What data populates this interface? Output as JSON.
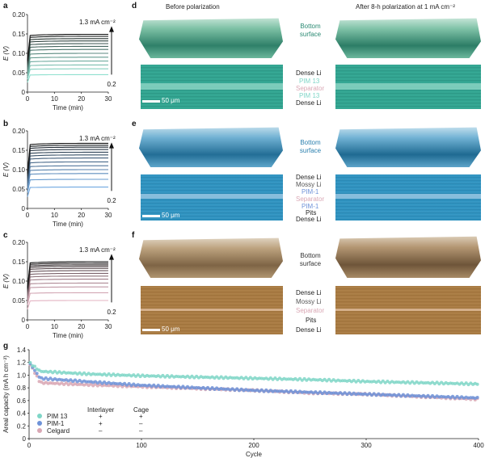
{
  "panels_abc": [
    {
      "label": "a",
      "current_label": "1.3 mA cm⁻²",
      "bottom_label": "0.2",
      "ylabel": "E (V)",
      "xlabel": "Time (min)",
      "yticks": [
        "0",
        "0.05",
        "0.10",
        "0.15",
        "0.20"
      ],
      "xticks": [
        "0",
        "10",
        "20",
        "30"
      ]
    },
    {
      "label": "b",
      "current_label": "1.3 mA cm⁻²",
      "bottom_label": "0.2",
      "ylabel": "E (V)",
      "xlabel": "Time (min)",
      "yticks": [
        "0",
        "0.05",
        "0.10",
        "0.15",
        "0.20"
      ],
      "xticks": [
        "0",
        "10",
        "20",
        "30"
      ]
    },
    {
      "label": "c",
      "current_label": "1.3 mA cm⁻²",
      "bottom_label": "0.2",
      "ylabel": "E (V)",
      "xlabel": "Time (min)",
      "yticks": [
        "0",
        "0.05",
        "0.10",
        "0.15",
        "0.20"
      ],
      "xticks": [
        "0",
        "10",
        "20",
        "30"
      ]
    }
  ],
  "panels_def": {
    "col_before": "Before polarization",
    "col_after": "After 8-h polarization at 1 mA cm⁻²",
    "bottom_surface": "Bottom surface",
    "scale": "50 μm",
    "d": {
      "label": "d",
      "annotations": [
        "Dense Li",
        "PIM 13",
        "Separator",
        "PIM 13",
        "Dense Li"
      ]
    },
    "e": {
      "label": "e",
      "annotations": [
        "Dense Li",
        "Mossy Li",
        "PIM-1",
        "Separator",
        "PIM-1",
        "Pits",
        "Dense Li"
      ]
    },
    "f": {
      "label": "f",
      "annotations": [
        "Dense Li",
        "Mossy Li",
        "Separator",
        "Pits",
        "Dense Li"
      ]
    }
  },
  "panel_g": {
    "label": "g",
    "ylabel": "Areal capacity (mA h cm⁻²)",
    "xlabel": "Cycle",
    "yticks": [
      "0",
      "0.2",
      "0.4",
      "0.6",
      "0.8",
      "1.0",
      "1.2",
      "1.4"
    ],
    "xticks": [
      "0",
      "100",
      "200",
      "300",
      "400"
    ],
    "legend_header_interlayer": "Interlayer",
    "legend_header_cage": "Cage",
    "legend": [
      {
        "name": "PIM 13",
        "interlayer": "+",
        "cage": "+",
        "color": "#7fd6c7"
      },
      {
        "name": "PIM-1",
        "interlayer": "+",
        "cage": "–",
        "color": "#6f93d8"
      },
      {
        "name": "Celgard",
        "interlayer": "–",
        "cage": "–",
        "color": "#d9a7b4"
      }
    ]
  },
  "chart_data": [
    {
      "type": "line",
      "panel": "a",
      "xlabel": "Time (min)",
      "ylabel": "E (V)",
      "xlim": [
        0,
        30
      ],
      "ylim": [
        0,
        0.2
      ],
      "series_values_at_30min": [
        0.045,
        0.06,
        0.07,
        0.08,
        0.09,
        0.1,
        0.11,
        0.118,
        0.125,
        0.132,
        0.138,
        0.144,
        0.149
      ]
    },
    {
      "type": "line",
      "panel": "b",
      "xlabel": "Time (min)",
      "ylabel": "E (V)",
      "xlim": [
        0,
        30
      ],
      "ylim": [
        0,
        0.2
      ],
      "series_values_at_30min": [
        0.055,
        0.075,
        0.09,
        0.1,
        0.11,
        0.12,
        0.13,
        0.138,
        0.145,
        0.152,
        0.158,
        0.163,
        0.168
      ]
    },
    {
      "type": "line",
      "panel": "c",
      "xlabel": "Time (min)",
      "ylabel": "E (V)",
      "xlim": [
        0,
        30
      ],
      "ylim": [
        0,
        0.2
      ],
      "series_values_at_30min": [
        0.05,
        0.07,
        0.085,
        0.095,
        0.105,
        0.113,
        0.12,
        0.127,
        0.133,
        0.138,
        0.142,
        0.146,
        0.15
      ]
    },
    {
      "type": "scatter",
      "panel": "g",
      "xlabel": "Cycle",
      "ylabel": "Areal capacity (mA h cm⁻²)",
      "xlim": [
        0,
        400
      ],
      "ylim": [
        0,
        1.4
      ],
      "series": [
        {
          "name": "PIM 13",
          "x": [
            0,
            10,
            50,
            100,
            150,
            200,
            250,
            300,
            350,
            400
          ],
          "values": [
            1.2,
            1.06,
            1.02,
            0.99,
            0.97,
            0.95,
            0.93,
            0.9,
            0.88,
            0.86
          ]
        },
        {
          "name": "PIM-1",
          "x": [
            0,
            10,
            50,
            100,
            150,
            200,
            250,
            300,
            350,
            400
          ],
          "values": [
            1.2,
            0.95,
            0.9,
            0.84,
            0.8,
            0.76,
            0.73,
            0.7,
            0.67,
            0.64
          ]
        },
        {
          "name": "Celgard",
          "x": [
            0,
            10,
            50,
            100,
            150,
            200,
            250,
            300,
            350,
            400
          ],
          "values": [
            1.2,
            0.88,
            0.85,
            0.82,
            0.79,
            0.76,
            0.72,
            0.7,
            0.66,
            0.62
          ]
        }
      ]
    }
  ]
}
